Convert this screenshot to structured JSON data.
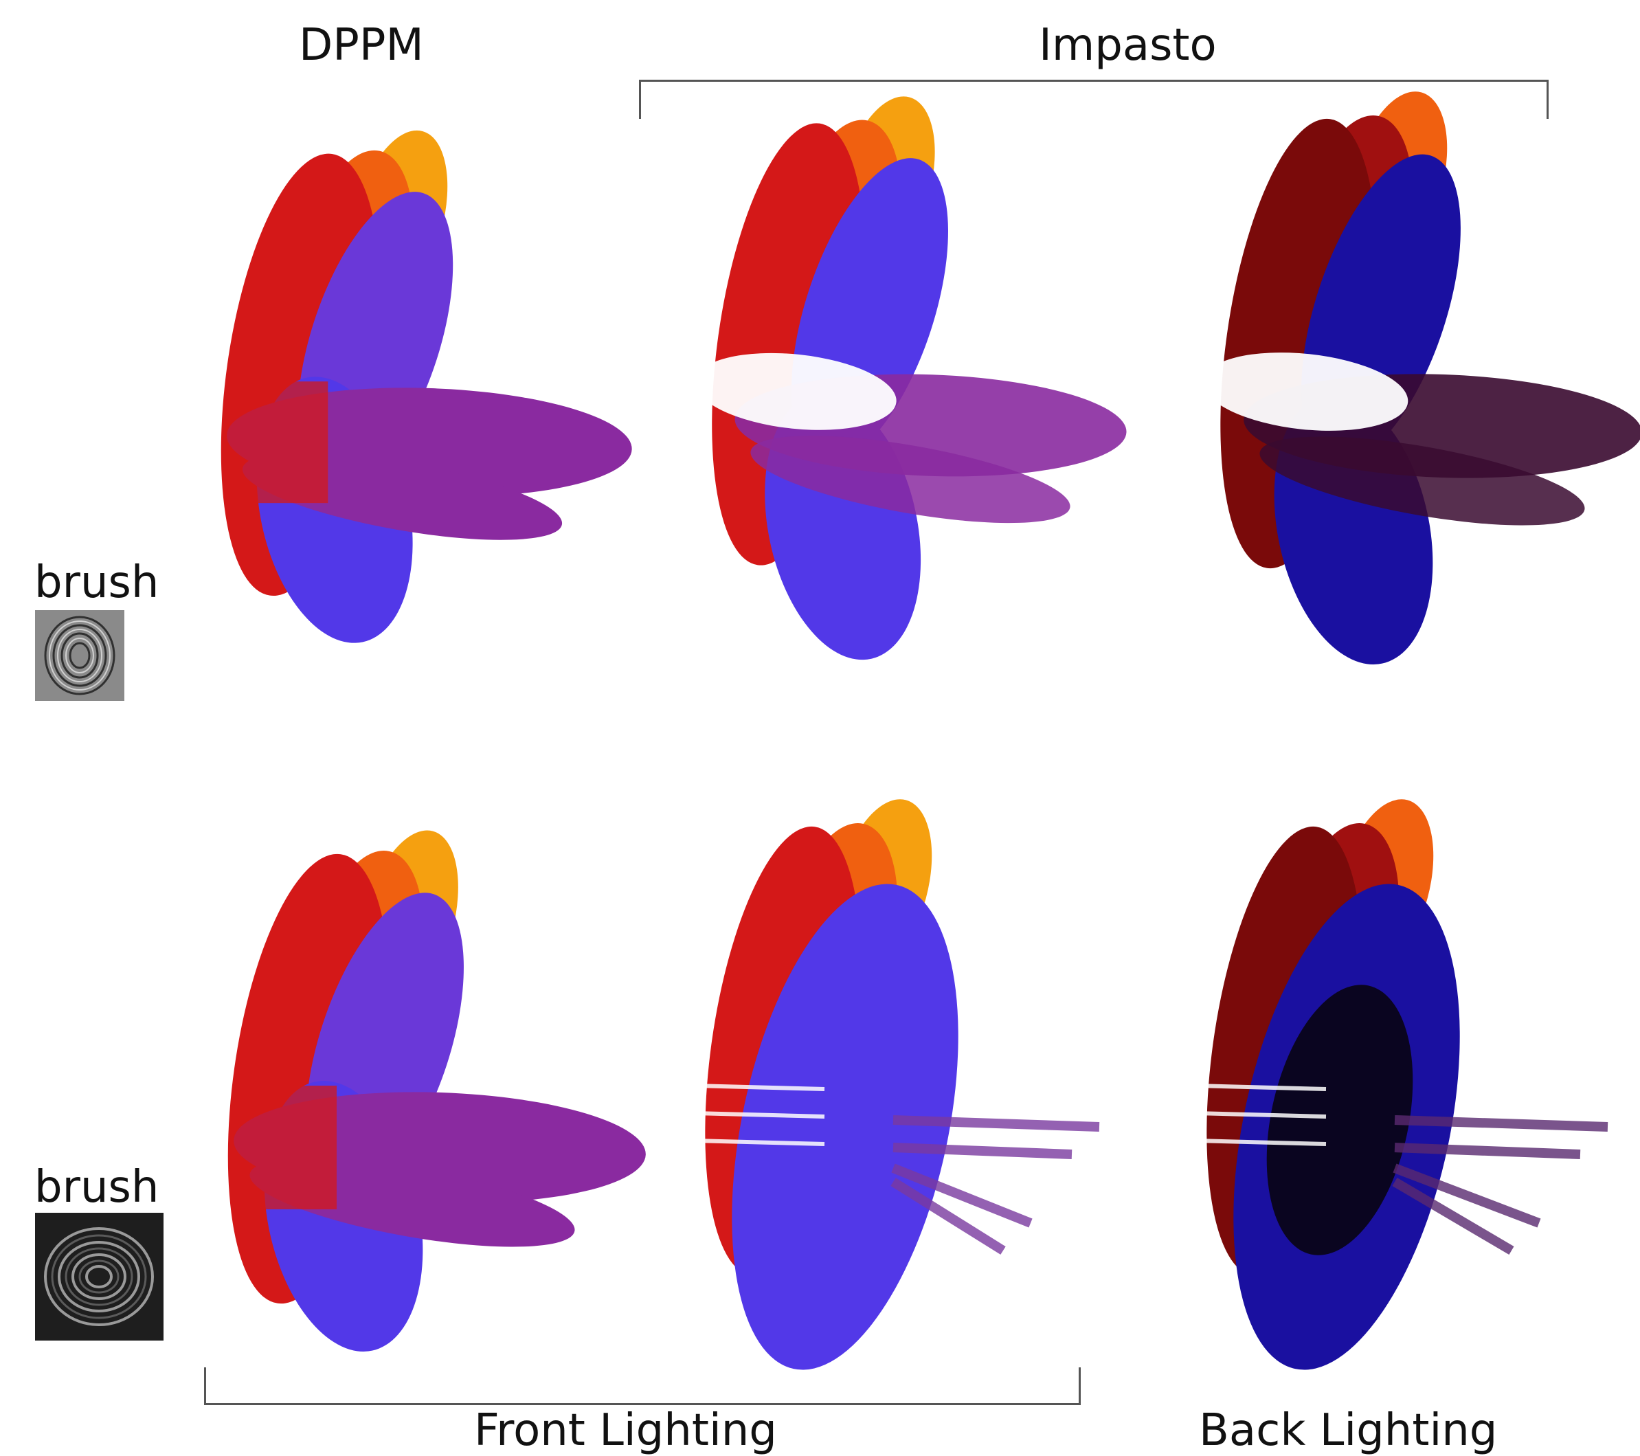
{
  "headers": {
    "dppm": "DPPM",
    "impasto": "Impasto"
  },
  "footers": {
    "front_lighting": "Front Lighting",
    "back_lighting": "Back Lighting"
  },
  "rows": [
    {
      "brush_label": "brush"
    },
    {
      "brush_label": "brush"
    }
  ],
  "colors": {
    "red": "#d41818",
    "orange": "#f06010",
    "amber": "#f5a010",
    "blue": "#5238e8",
    "purple": "#8a2aa0",
    "back_red": "#7a0a0a",
    "back_blue": "#1a10a0"
  }
}
